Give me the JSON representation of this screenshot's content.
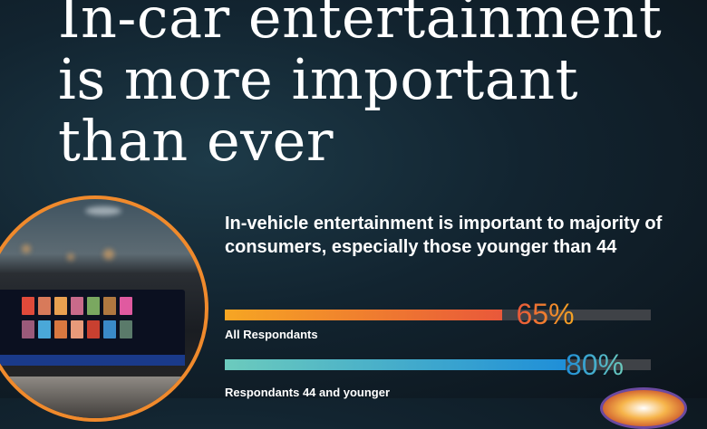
{
  "title_lines": [
    "In-car entertainment",
    "is more important",
    "than ever"
  ],
  "subtitle": "In-vehicle entertainment is important to majority of consumers, especially those younger than 44",
  "colors": {
    "series1_start": "#f6a623",
    "series1_end": "#e9583a",
    "series2_start": "#6ccbbd",
    "series2_end": "#1f8fd8",
    "track": "#3f4247",
    "photo_ring": "#f08a2c"
  },
  "chart_data": {
    "type": "bar",
    "orientation": "horizontal",
    "categories": [
      "All Respondants",
      "Respondants 44 and younger"
    ],
    "values": [
      65,
      80
    ],
    "value_labels": [
      "65%",
      "80%"
    ],
    "xlim": [
      0,
      100
    ]
  }
}
